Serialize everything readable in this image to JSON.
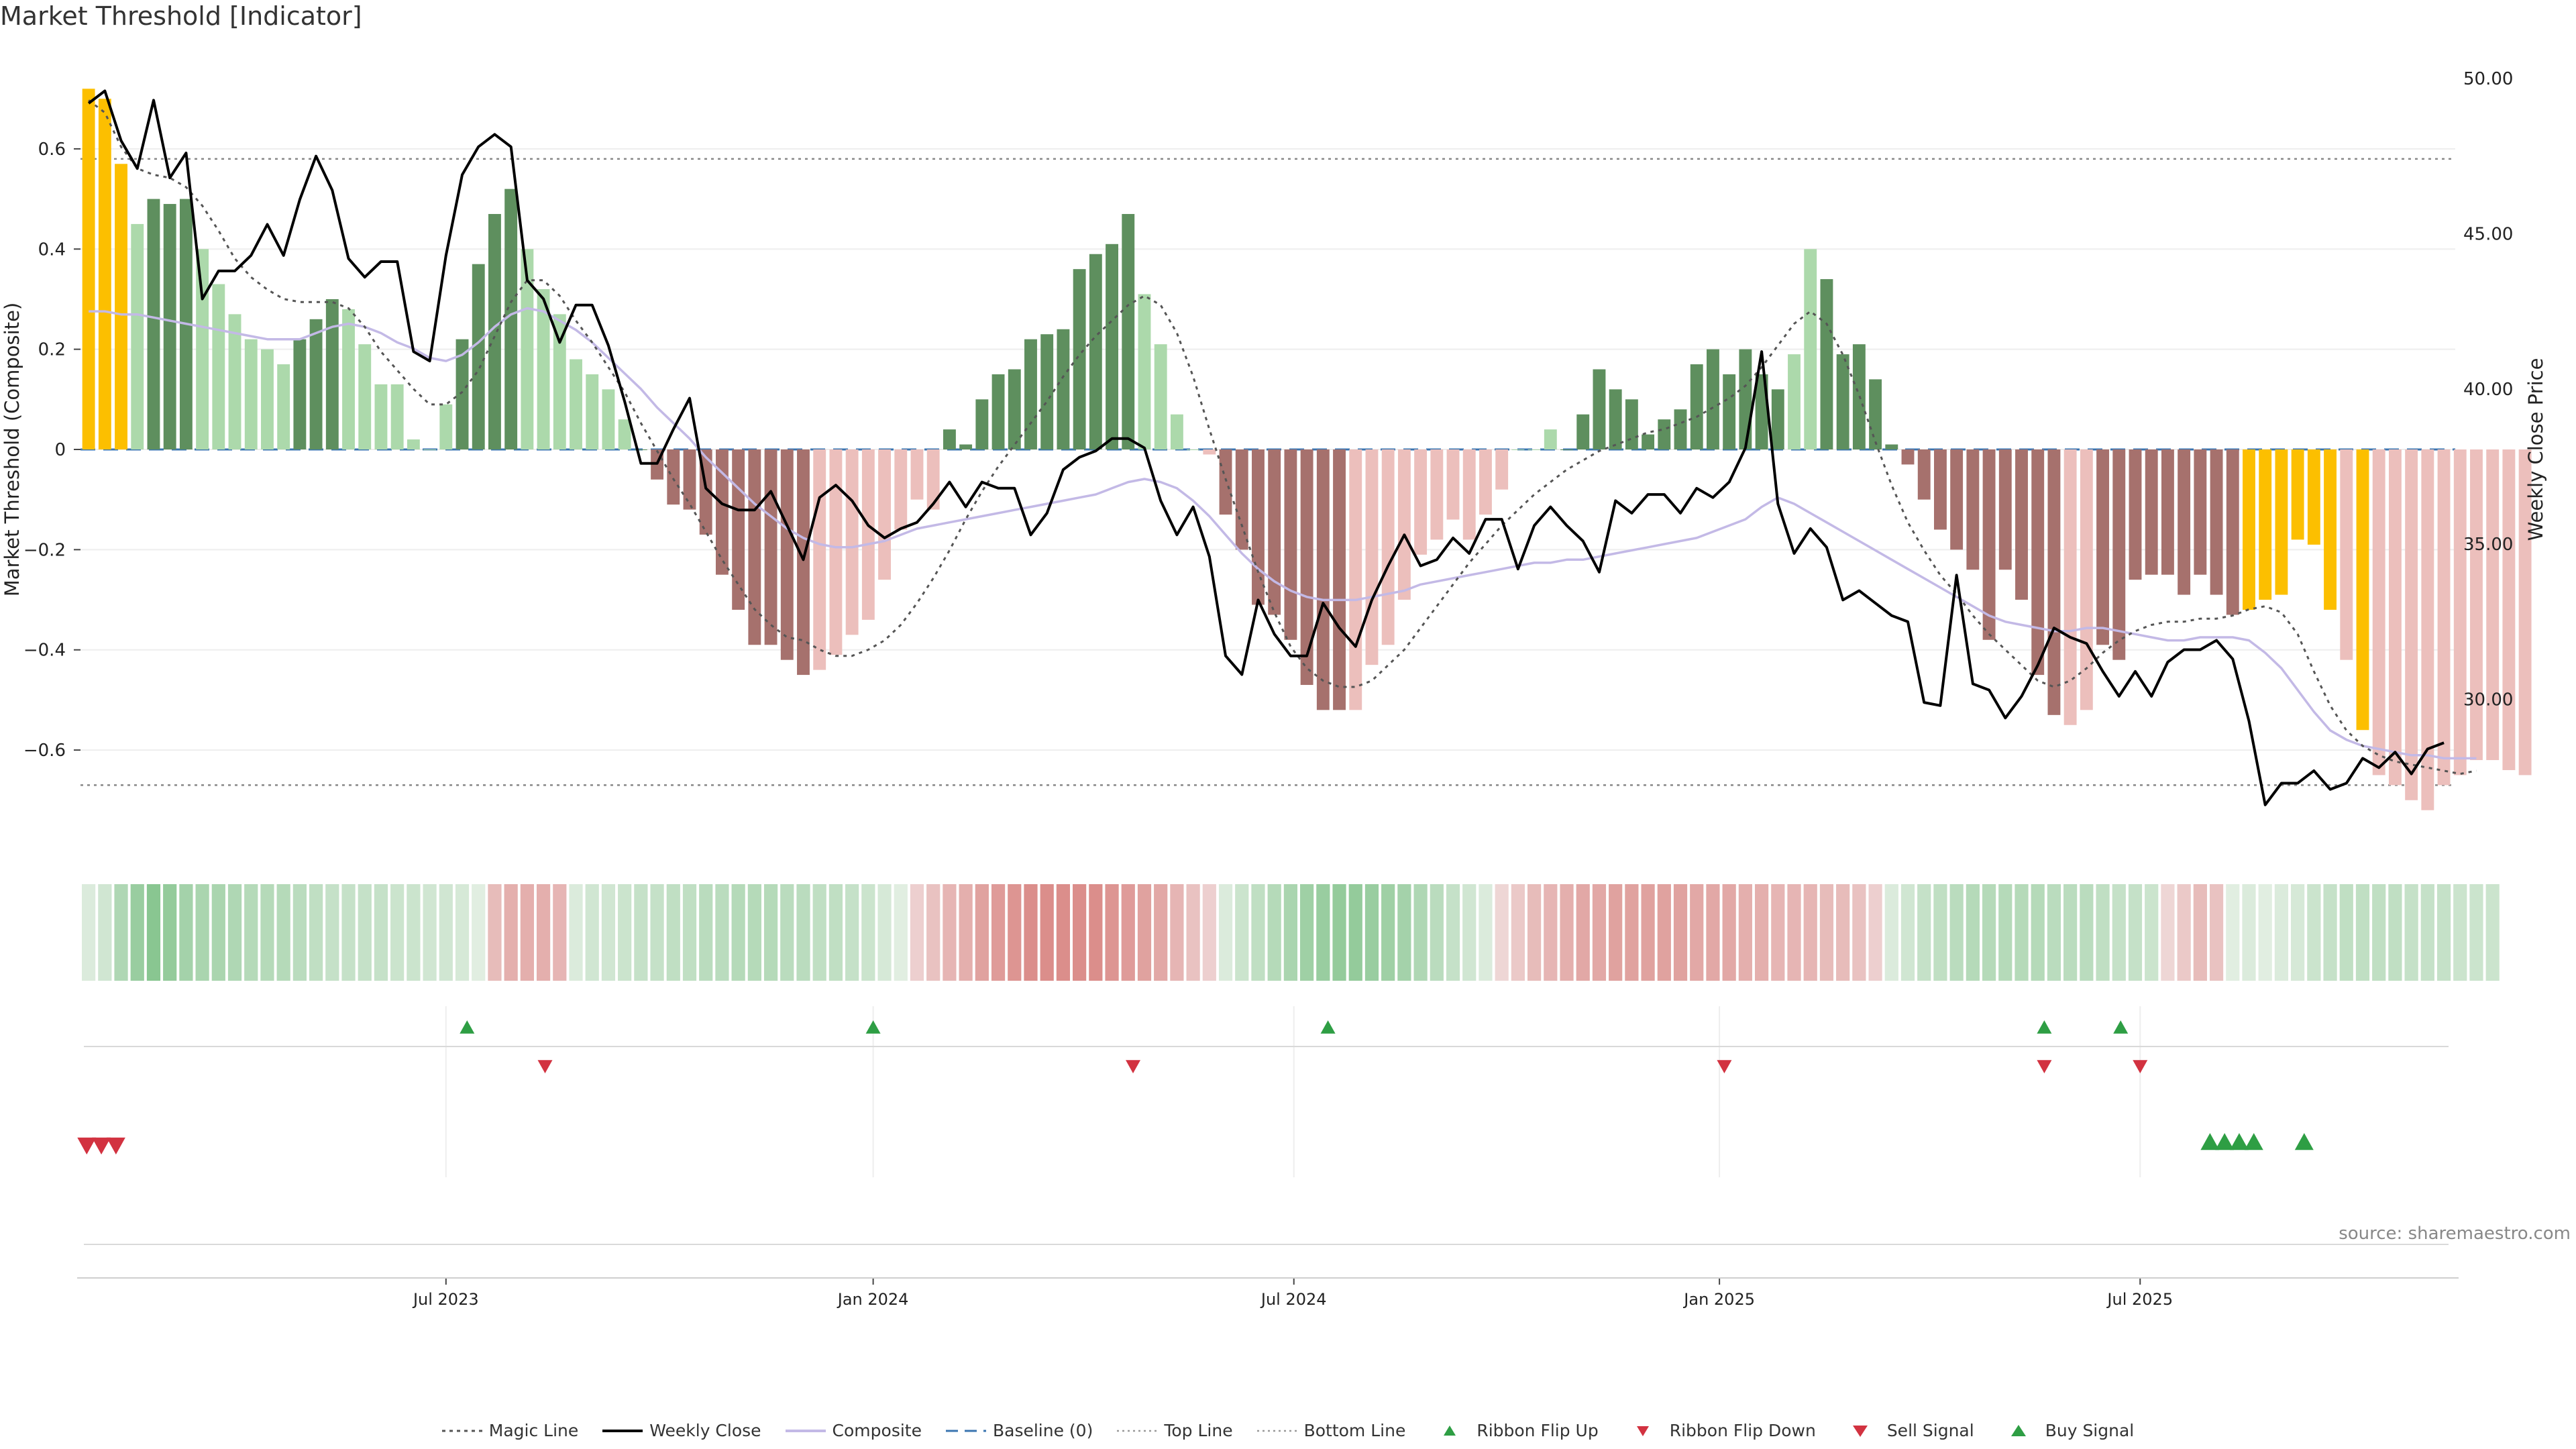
{
  "title": "Market Threshold [Indicator]",
  "source": "source: sharemaestro.com",
  "colors": {
    "strong_pos": "#5e8f5e",
    "weak_pos": "#acd9ab",
    "strong_neg": "#a6716d",
    "weak_neg": "#ecbfbc",
    "extreme": "#fcbf00",
    "price": "#000000",
    "magic": "#555555",
    "composite": "#c3b9e6",
    "baseline": "#3a75b0",
    "buy": "#2e9e44",
    "sell": "#d23240"
  },
  "legend": [
    {
      "label": "Magic Line",
      "icon": "dotted-line-icon"
    },
    {
      "label": "Weekly Close",
      "icon": "solid-line-icon"
    },
    {
      "label": "Composite",
      "icon": "composite-line-icon"
    },
    {
      "label": "Baseline (0)",
      "icon": "dashed-line-icon"
    },
    {
      "label": "Top Line",
      "icon": "dotted-line-icon"
    },
    {
      "label": "Bottom Line",
      "icon": "dotted-line-icon"
    },
    {
      "label": "Ribbon Flip Up",
      "icon": "triangle-up-icon"
    },
    {
      "label": "Ribbon Flip Down",
      "icon": "triangle-down-icon"
    },
    {
      "label": "Sell Signal",
      "icon": "triangle-down-icon"
    },
    {
      "label": "Buy Signal",
      "icon": "triangle-up-icon"
    }
  ],
  "chart_data": {
    "type": "bar",
    "title": "Market Threshold [Indicator]",
    "ylabel": "Market Threshold (Composite)",
    "y2label": "Weekly Close Price",
    "ylim": [
      -0.79,
      0.79
    ],
    "y2lim": [
      25.3,
      50.8
    ],
    "yticks": [
      -0.6,
      -0.4,
      -0.2,
      0,
      0.2,
      0.4,
      0.6
    ],
    "ytick_labels": [
      "−0.6",
      "−0.4",
      "−0.2",
      "0",
      "0.2",
      "0.4",
      "0.6"
    ],
    "y2ticks": [
      30,
      35,
      40,
      45,
      50
    ],
    "y2tick_labels": [
      "30.00",
      "35.00",
      "40.00",
      "45.00",
      "50.00"
    ],
    "x_range": [
      0,
      146.2
    ],
    "xticks": [
      {
        "label": "Jul 2023",
        "x": 22.5
      },
      {
        "label": "Jan 2024",
        "x": 48.8
      },
      {
        "label": "Jul 2024",
        "x": 74.7
      },
      {
        "label": "Jan 2025",
        "x": 100.9
      },
      {
        "label": "Jul 2025",
        "x": 126.8
      }
    ],
    "top_line": 0.58,
    "bottom_line": -0.67,
    "baseline": 0,
    "composite": [
      0.72,
      0.7,
      0.57,
      0.45,
      0.5,
      0.49,
      0.5,
      0.4,
      0.33,
      0.27,
      0.22,
      0.2,
      0.17,
      0.22,
      0.26,
      0.3,
      0.28,
      0.21,
      0.13,
      0.13,
      0.02,
      0,
      0.09,
      0.22,
      0.37,
      0.47,
      0.52,
      0.4,
      0.32,
      0.27,
      0.18,
      0.15,
      0.12,
      0.06,
      0,
      -0.06,
      -0.11,
      -0.12,
      -0.17,
      -0.25,
      -0.32,
      -0.39,
      -0.39,
      -0.42,
      -0.45,
      -0.44,
      -0.41,
      -0.37,
      -0.34,
      -0.26,
      -0.16,
      -0.1,
      -0.12,
      0.04,
      0.01,
      0.1,
      0.15,
      0.16,
      0.22,
      0.23,
      0.24,
      0.36,
      0.39,
      0.41,
      0.47,
      0.31,
      0.21,
      0.07,
      0,
      -0.01,
      -0.13,
      -0.2,
      -0.31,
      -0.33,
      -0.38,
      -0.47,
      -0.52,
      -0.52,
      -0.52,
      -0.43,
      -0.39,
      -0.3,
      -0.21,
      -0.18,
      -0.14,
      -0.18,
      -0.13,
      -0.08,
      0,
      0,
      0.04,
      0,
      0.07,
      0.16,
      0.12,
      0.1,
      0.03,
      0.06,
      0.08,
      0.17,
      0.2,
      0.15,
      0.2,
      0.15,
      0.12,
      0.19,
      0.4,
      0.34,
      0.19,
      0.21,
      0.14,
      0.01,
      -0.03,
      -0.1,
      -0.16,
      -0.2,
      -0.24,
      -0.38,
      -0.24,
      -0.3,
      -0.45,
      -0.53,
      -0.55,
      -0.52,
      -0.39,
      -0.42,
      -0.26,
      -0.25,
      -0.25,
      -0.29,
      -0.25,
      -0.29,
      -0.33,
      -0.32,
      -0.3,
      -0.29,
      -0.18,
      -0.19,
      -0.32,
      -0.42,
      -0.56,
      -0.65,
      -0.67,
      -0.7,
      -0.72,
      -0.67,
      -0.65,
      -0.62,
      -0.62,
      -0.64,
      -0.65
    ],
    "extreme_bars": [
      0,
      1,
      2,
      133,
      134,
      135,
      136,
      137,
      138,
      140
    ],
    "strong_bars": [
      4,
      5,
      6,
      13,
      14,
      15,
      23,
      24,
      25,
      26,
      34,
      35,
      36,
      37,
      38,
      39,
      40,
      41,
      42,
      43,
      44,
      53,
      54,
      55,
      56,
      57,
      58,
      59,
      60,
      61,
      62,
      63,
      64,
      70,
      71,
      72,
      73,
      74,
      75,
      76,
      77,
      91,
      92,
      93,
      94,
      95,
      96,
      97,
      98,
      99,
      100,
      101,
      102,
      103,
      104,
      107,
      108,
      109,
      110,
      111,
      112,
      113,
      114,
      115,
      116,
      117,
      118,
      119,
      120,
      121,
      124,
      125,
      126,
      127,
      128,
      129,
      130,
      131,
      132
    ],
    "weekly_close": [
      49.2,
      49.6,
      48,
      47.1,
      49.3,
      46.8,
      47.6,
      42.9,
      43.8,
      43.8,
      44.3,
      45.3,
      44.3,
      46.1,
      47.5,
      46.4,
      44.2,
      43.6,
      44.1,
      44.1,
      41.2,
      40.9,
      44.3,
      46.9,
      47.8,
      48.2,
      47.8,
      43.5,
      42.9,
      41.5,
      42.7,
      42.7,
      41.4,
      39.6,
      37.6,
      37.6,
      38.7,
      39.7,
      36.8,
      36.3,
      36.1,
      36.1,
      36.7,
      35.6,
      34.5,
      36.5,
      36.9,
      36.4,
      35.6,
      35.2,
      35.5,
      35.7,
      36.3,
      37,
      36.2,
      37,
      36.8,
      36.8,
      35.3,
      36,
      37.4,
      37.8,
      38,
      38.4,
      38.4,
      38.1,
      36.4,
      35.3,
      36.2,
      34.6,
      31.4,
      30.8,
      33.2,
      32.1,
      31.4,
      31.4,
      33.1,
      32.3,
      31.7,
      33.2,
      34.3,
      35.3,
      34.3,
      34.5,
      35.2,
      34.7,
      35.8,
      35.8,
      34.2,
      35.6,
      36.2,
      35.6,
      35.1,
      34.1,
      36.4,
      36,
      36.6,
      36.6,
      36,
      36.8,
      36.5,
      37,
      38.1,
      41.2,
      36.3,
      34.7,
      35.5,
      34.9,
      33.2,
      33.5,
      33.1,
      32.7,
      32.5,
      29.9,
      29.8,
      34,
      30.5,
      30.3,
      29.4,
      30.1,
      31.1,
      32.3,
      32,
      31.8,
      30.9,
      30.1,
      30.9,
      30.1,
      31.2,
      31.6,
      31.6,
      31.9,
      31.3,
      29.3,
      26.6,
      27.3,
      27.3,
      27.7,
      27.1,
      27.3,
      28.1,
      27.8,
      28.3,
      27.6,
      28.4,
      28.6
    ],
    "magic_line": [
      49.3,
      48.9,
      47.8,
      47.1,
      46.9,
      46.8,
      46.5,
      45.9,
      45.1,
      44.2,
      43.6,
      43.2,
      42.9,
      42.8,
      42.8,
      42.8,
      42.6,
      42,
      41.2,
      40.6,
      40,
      39.5,
      39.5,
      39.9,
      40.6,
      41.7,
      42.8,
      43.5,
      43.5,
      43,
      42.2,
      41.5,
      40.7,
      39.9,
      38.9,
      38,
      37.1,
      36.3,
      35.4,
      34.5,
      33.7,
      32.9,
      32.4,
      32,
      31.9,
      31.6,
      31.4,
      31.4,
      31.6,
      31.9,
      32.4,
      33.1,
      33.9,
      34.8,
      35.8,
      36.7,
      37.5,
      38.2,
      38.9,
      39.6,
      40.4,
      41.1,
      41.7,
      42.2,
      42.7,
      43,
      42.7,
      41.8,
      40.4,
      38.7,
      37.1,
      35.6,
      34.1,
      32.8,
      31.7,
      31,
      30.6,
      30.4,
      30.4,
      30.6,
      31.1,
      31.6,
      32.3,
      33,
      33.7,
      34.4,
      35,
      35.6,
      36.1,
      36.6,
      37,
      37.4,
      37.7,
      38,
      38.2,
      38.4,
      38.6,
      38.7,
      38.9,
      39.1,
      39.4,
      39.7,
      40.1,
      40.7,
      41.4,
      42.1,
      42.5,
      42.1,
      41.1,
      39.8,
      38.3,
      36.9,
      35.7,
      34.8,
      34,
      33.4,
      32.7,
      32.1,
      31.6,
      31.1,
      30.6,
      30.4,
      30.6,
      31,
      31.5,
      31.9,
      32.2,
      32.4,
      32.5,
      32.5,
      32.6,
      32.6,
      32.7,
      32.9,
      33,
      32.8,
      32.1,
      30.9,
      29.8,
      29,
      28.5,
      28.2,
      28,
      27.9,
      27.8,
      27.7,
      27.6,
      27.7
    ],
    "composite_line": [
      42.5,
      42.5,
      42.4,
      42.4,
      42.3,
      42.2,
      42.1,
      42,
      41.9,
      41.8,
      41.7,
      41.6,
      41.6,
      41.6,
      41.8,
      42,
      42.1,
      42,
      41.8,
      41.5,
      41.3,
      41,
      40.9,
      41.1,
      41.5,
      42,
      42.4,
      42.6,
      42.5,
      42.2,
      41.9,
      41.5,
      41,
      40.5,
      40,
      39.4,
      38.9,
      38.4,
      37.8,
      37.3,
      36.8,
      36.3,
      35.9,
      35.5,
      35.2,
      35,
      34.9,
      34.9,
      35,
      35.1,
      35.3,
      35.5,
      35.6,
      35.7,
      35.8,
      35.9,
      36,
      36.1,
      36.2,
      36.3,
      36.4,
      36.5,
      36.6,
      36.8,
      37,
      37.1,
      37,
      36.8,
      36.4,
      35.9,
      35.3,
      34.7,
      34.2,
      33.8,
      33.5,
      33.3,
      33.2,
      33.2,
      33.2,
      33.3,
      33.4,
      33.5,
      33.7,
      33.8,
      33.9,
      34,
      34.1,
      34.2,
      34.3,
      34.4,
      34.4,
      34.5,
      34.5,
      34.6,
      34.7,
      34.8,
      34.9,
      35,
      35.1,
      35.2,
      35.4,
      35.6,
      35.8,
      36.2,
      36.5,
      36.3,
      36,
      35.7,
      35.4,
      35.1,
      34.8,
      34.5,
      34.2,
      33.9,
      33.6,
      33.3,
      33,
      32.7,
      32.5,
      32.4,
      32.3,
      32.2,
      32.2,
      32.3,
      32.3,
      32.2,
      32.1,
      32,
      31.9,
      31.9,
      32,
      32,
      32,
      31.9,
      31.5,
      31,
      30.3,
      29.6,
      29,
      28.7,
      28.5,
      28.4,
      28.3,
      28.2,
      28.2,
      28.1,
      28.1,
      28.1
    ],
    "ribbon": [
      0.1,
      0.2,
      0.5,
      0.7,
      0.85,
      0.75,
      0.6,
      0.55,
      0.55,
      0.5,
      0.45,
      0.45,
      0.45,
      0.4,
      0.35,
      0.3,
      0.3,
      0.3,
      0.3,
      0.25,
      0.25,
      0.2,
      0.2,
      0.15,
      0.05,
      -0.25,
      -0.35,
      -0.35,
      -0.35,
      -0.3,
      0.1,
      0.2,
      0.2,
      0.25,
      0.3,
      0.3,
      0.35,
      0.35,
      0.4,
      0.4,
      0.45,
      0.45,
      0.45,
      0.4,
      0.4,
      0.35,
      0.35,
      0.3,
      0.25,
      0.15,
      0.05,
      -0.1,
      -0.2,
      -0.3,
      -0.35,
      -0.45,
      -0.5,
      -0.55,
      -0.6,
      -0.6,
      -0.6,
      -0.6,
      -0.6,
      -0.55,
      -0.5,
      -0.45,
      -0.4,
      -0.3,
      -0.2,
      -0.1,
      0.1,
      0.25,
      0.35,
      0.45,
      0.55,
      0.65,
      0.7,
      0.75,
      0.75,
      0.7,
      0.65,
      0.6,
      0.5,
      0.4,
      0.3,
      0.2,
      0.1,
      -0.05,
      -0.15,
      -0.25,
      -0.3,
      -0.35,
      -0.4,
      -0.4,
      -0.45,
      -0.45,
      -0.45,
      -0.45,
      -0.45,
      -0.4,
      -0.4,
      -0.4,
      -0.35,
      -0.35,
      -0.3,
      -0.3,
      -0.3,
      -0.25,
      -0.25,
      -0.2,
      -0.1,
      0.1,
      0.2,
      0.3,
      0.35,
      0.4,
      0.45,
      0.45,
      0.45,
      0.45,
      0.45,
      0.4,
      0.4,
      0.4,
      0.35,
      0.3,
      0.3,
      0.25,
      -0.05,
      -0.15,
      -0.25,
      -0.2,
      0.05,
      0.1,
      0.05,
      0.1,
      0.15,
      0.25,
      0.3,
      0.35,
      0.35,
      0.35,
      0.35,
      0.3,
      0.3,
      0.3,
      0.25,
      0.25,
      0.25
    ],
    "ribbon_flip_up": [
      23.8,
      48.8,
      76.8,
      120.9,
      125.6
    ],
    "ribbon_flip_down": [
      28.6,
      64.8,
      101.2,
      120.9,
      126.8
    ],
    "sell_signals": [
      0.3,
      1.2,
      2.1
    ],
    "buy_signals": [
      131.1,
      132.0,
      132.9,
      133.8,
      136.9
    ]
  }
}
